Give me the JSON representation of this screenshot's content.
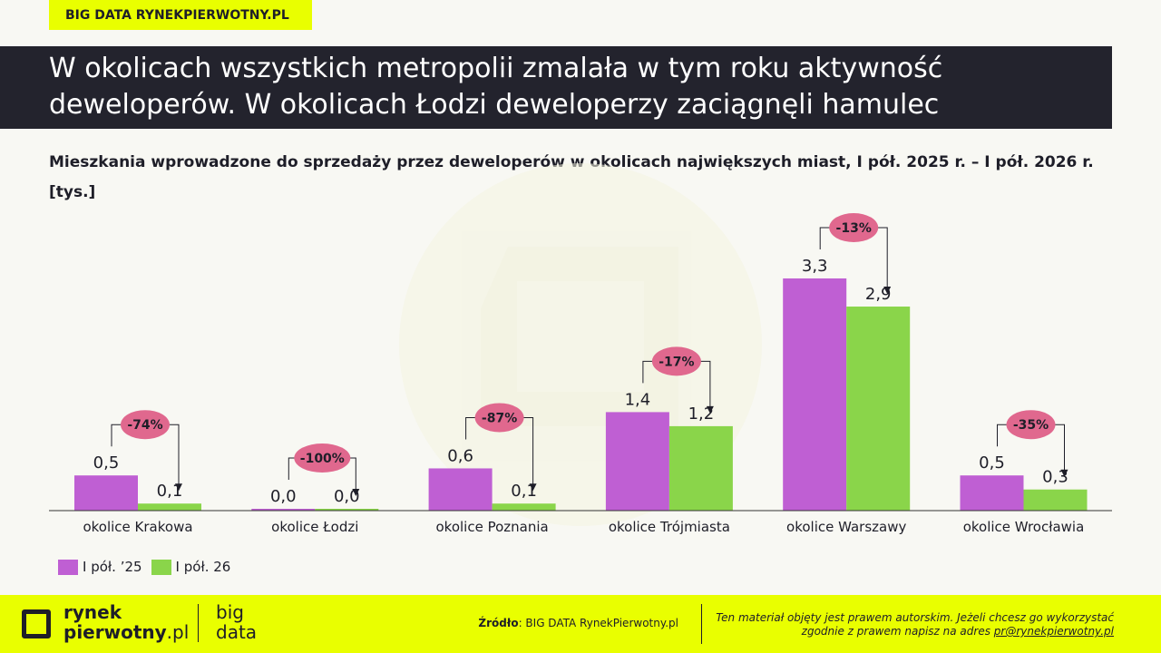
{
  "header": {
    "badge": "BIG DATA RYNEKPIERWOTNY.PL",
    "title": "W okolicach wszystkich metropolii zmalała w tym roku aktywność deweloperów. W okolicach Łodzi deweloperzy zaciągnęli hamulec",
    "subtitle": "Mieszkania wprowadzone do sprzedaży przez deweloperów w okolicach największych miast, I pół. 2025 r. – I pół. 2026 r. [tys.]"
  },
  "chart_data": {
    "type": "bar",
    "categories": [
      "okolice Krakowa",
      "okolice Łodzi",
      "okolice Poznania",
      "okolice Trójmiasta",
      "okolice Warszawy",
      "okolice Wrocławia"
    ],
    "series": [
      {
        "name": "I pół. ’25",
        "color": "#bf5fd3",
        "values": [
          0.5,
          0.0,
          0.6,
          1.4,
          3.3,
          0.5
        ],
        "labels": [
          "0,5",
          "0,0",
          "0,6",
          "1,4",
          "3,3",
          "0,5"
        ]
      },
      {
        "name": "I pół. 26",
        "color": "#8ad54a",
        "values": [
          0.1,
          0.0,
          0.1,
          1.2,
          2.9,
          0.3
        ],
        "labels": [
          "0,1",
          "0,0",
          "0,1",
          "1,2",
          "2,9",
          "0,3"
        ]
      }
    ],
    "changes": [
      "-74%",
      "-100%",
      "-87%",
      "-17%",
      "-13%",
      "-35%"
    ],
    "change_color": "#e0688e",
    "ylim": [
      0,
      3.3
    ],
    "grid": false,
    "legend_position": "bottom-left"
  },
  "footer": {
    "logo_line1": "rynek",
    "logo_line2_bold": "pierwotny",
    "logo_line2_thin": ".pl",
    "logo2_line1": "big",
    "logo2_line2": "data",
    "source_label": "Źródło",
    "source_text": ": BIG DATA RynekPierwotny.pl",
    "copyright_line1": "Ten materiał objęty jest prawem autorskim. Jeżeli chcesz go wykorzystać",
    "copyright_line2": "zgodnie z prawem napisz na adres ",
    "copyright_email": "pr@rynekpierwotny.pl"
  },
  "colors": {
    "accent": "#e9ff00",
    "dark": "#23232d"
  }
}
